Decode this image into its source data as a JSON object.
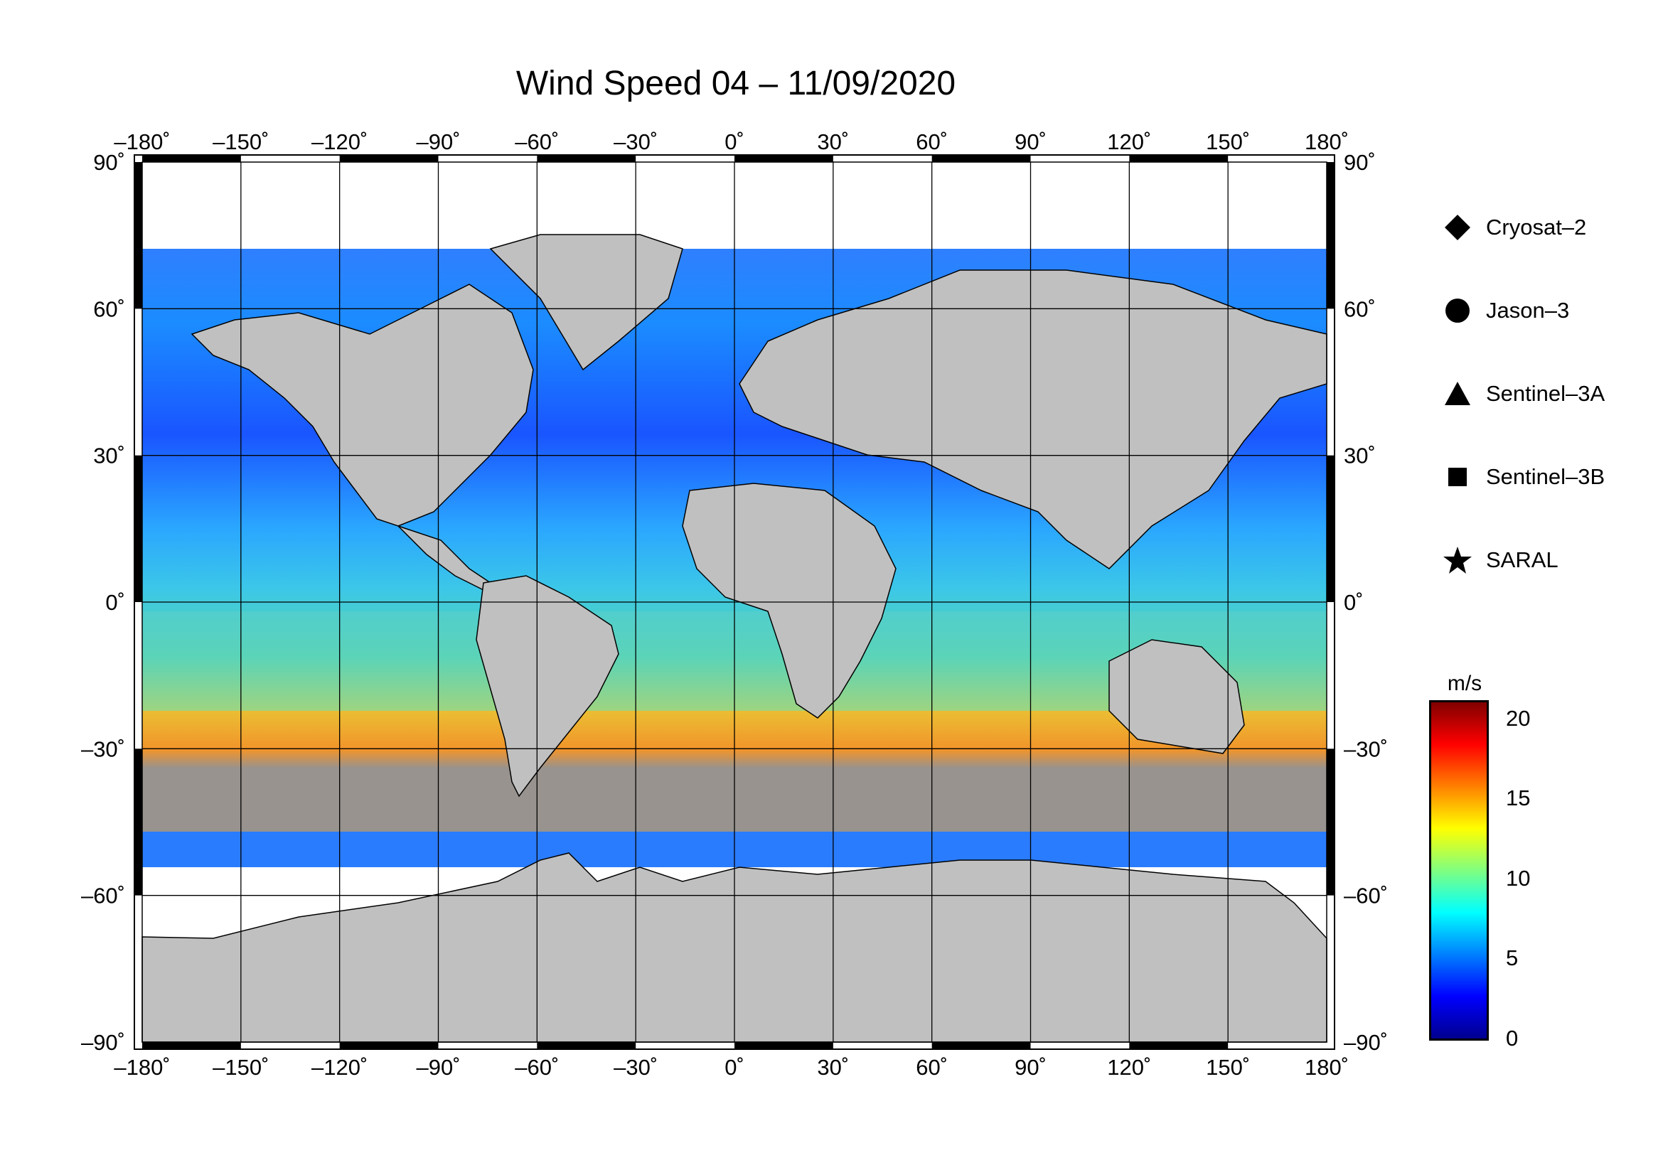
{
  "title": "Wind Speed 04 – 11/09/2020",
  "lon_ticks": [
    "–180˚",
    "–150˚",
    "–120˚",
    "–90˚",
    "–60˚",
    "–30˚",
    "0˚",
    "30˚",
    "60˚",
    "90˚",
    "120˚",
    "150˚",
    "180˚"
  ],
  "lat_ticks_left": [
    "90˚",
    "60˚",
    "30˚",
    "0˚",
    "–30˚",
    "–60˚",
    "–90˚"
  ],
  "lat_ticks_right": [
    "90˚",
    "60˚",
    "30˚",
    "0˚",
    "–30˚",
    "–60˚",
    "–90˚"
  ],
  "legend": [
    {
      "symbol": "diamond",
      "label": "Cryosat–2"
    },
    {
      "symbol": "circle",
      "label": "Jason–3"
    },
    {
      "symbol": "triangle",
      "label": "Sentinel–3A"
    },
    {
      "symbol": "square",
      "label": "Sentinel–3B"
    },
    {
      "symbol": "star",
      "label": "SARAL"
    }
  ],
  "colorbar": {
    "unit": "m/s",
    "ticks": [
      "20",
      "15",
      "10",
      "5",
      "0"
    ],
    "range": [
      0,
      21
    ],
    "colors": [
      "#00008f",
      "#0000ff",
      "#0080ff",
      "#00ffff",
      "#80ff80",
      "#ffff00",
      "#ff8000",
      "#ff0000",
      "#800000"
    ]
  },
  "colors": {
    "land": "#c0c0c0",
    "ice": "#ffffff",
    "frame": "#000000"
  }
}
